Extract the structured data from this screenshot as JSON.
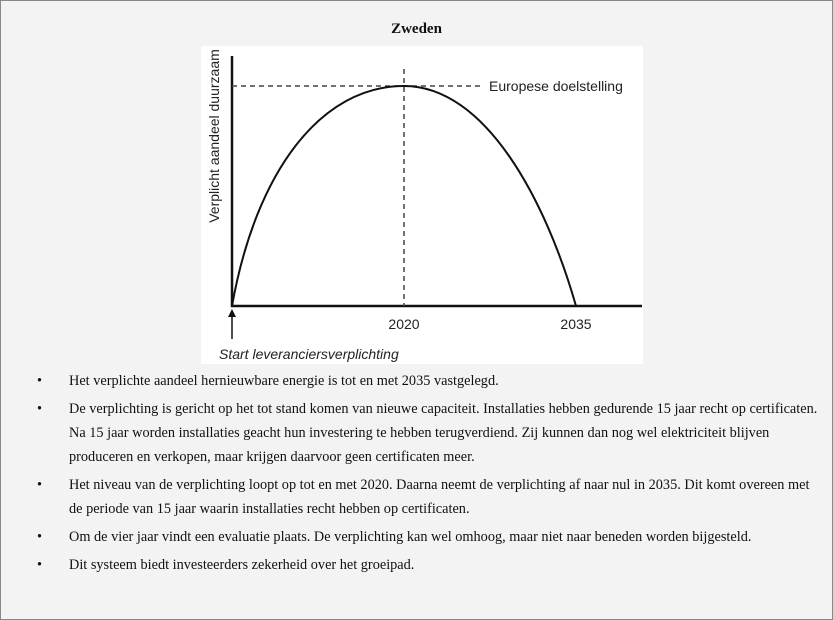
{
  "header": {
    "title": "Zweden"
  },
  "figure": {
    "y_axis_label": "Verplicht aandeel duurzaam",
    "target_label": "Europese doelstelling",
    "x_labels": [
      "2020",
      "2035"
    ],
    "start_label": "Start leveranciersverplichting"
  },
  "bullets": [
    "Het verplichte aandeel hernieuwbare energie is tot en met 2035 vastgelegd.",
    "De verplichting is gericht op het tot stand komen van nieuwe capaciteit. Installaties hebben gedurende 15 jaar recht op certificaten. Na 15 jaar worden installaties geacht hun investering te hebben terugverdiend. Zij kunnen dan nog wel elektriciteit blijven produceren en verkopen, maar krijgen daarvoor geen certificaten meer.",
    "Het niveau van de verplichting loopt op tot en met 2020. Daarna neemt de verplichting af naar nul in 2035. Dit komt overeen met de periode van 15 jaar waarin installaties recht hebben op certificaten.",
    "Om de vier jaar vindt een evaluatie plaats. De verplichting kan wel omhoog, maar niet naar beneden worden bijgesteld.",
    "Dit systeem biedt investeerders zekerheid over het groeipad."
  ]
}
